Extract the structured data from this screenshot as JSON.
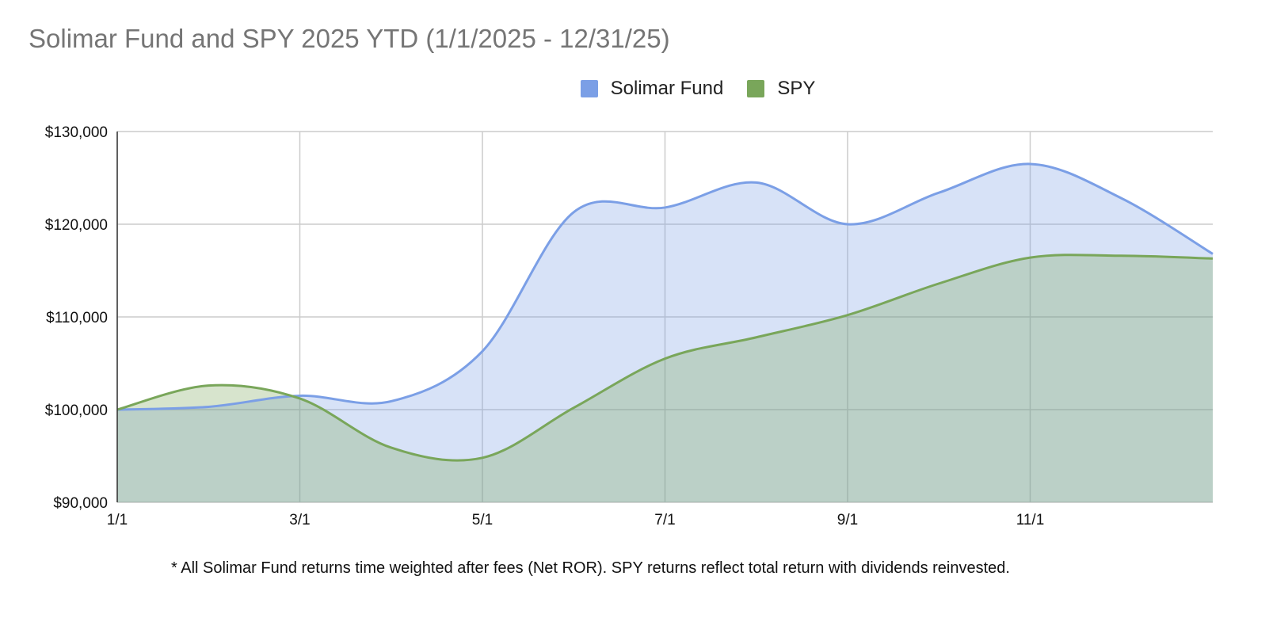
{
  "chart_data": {
    "type": "area",
    "title": "Solimar Fund and SPY 2025 YTD (1/1/2025 - 12/31/25)",
    "x": [
      "1/1",
      "2/1",
      "3/1",
      "4/1",
      "5/1",
      "6/1",
      "7/1",
      "8/1",
      "9/1",
      "10/1",
      "11/1",
      "12/1",
      "12/31"
    ],
    "x_tick_labels": [
      "1/1",
      "3/1",
      "5/1",
      "7/1",
      "9/1",
      "11/1"
    ],
    "y_tick_labels": [
      "$130,000",
      "$120,000",
      "$110,000",
      "$100,000",
      "$90,000"
    ],
    "y_ticks": [
      130000,
      120000,
      110000,
      100000,
      90000
    ],
    "ylim": [
      90000,
      130000
    ],
    "grid": true,
    "legend_position": "top",
    "series": [
      {
        "name": "Solimar Fund",
        "color": "#7b9fe6",
        "values": [
          100000,
          100300,
          101500,
          100900,
          106300,
          121300,
          121800,
          124500,
          120000,
          123400,
          126500,
          122800,
          116800
        ]
      },
      {
        "name": "SPY",
        "color": "#79a65a",
        "values": [
          100000,
          102600,
          101200,
          95900,
          94800,
          100200,
          105500,
          107800,
          110200,
          113600,
          116400,
          116600,
          116300
        ]
      }
    ],
    "footnote": "* All Solimar Fund returns time weighted after fees (Net ROR). SPY returns reflect total return with dividends reinvested."
  }
}
